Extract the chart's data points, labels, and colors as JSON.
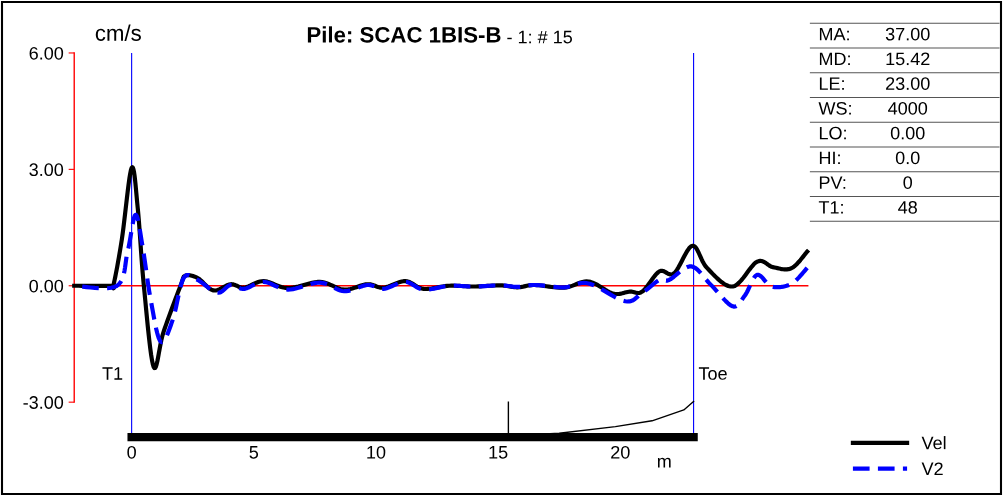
{
  "chart_data": {
    "type": "line",
    "title": "Pile: SCAC 1BIS-B",
    "subtitle": "- 1: # 15",
    "ylabel": "cm/s",
    "xlabel": "m",
    "xlim": [
      -2.35,
      27.7
    ],
    "ylim": [
      -3.9,
      6.0
    ],
    "xticks": [
      0,
      5,
      10,
      15,
      20
    ],
    "yticks": [
      {
        "value": 6,
        "label": "6.00"
      },
      {
        "value": 3,
        "label": "3.00"
      },
      {
        "value": 0,
        "label": "0.00"
      },
      {
        "value": -3,
        "label": "-3.00"
      }
    ],
    "series": [
      {
        "name": "Vel",
        "color": "#000000",
        "line_style": "solid",
        "x": [
          -2.35,
          -0.86,
          -0.74,
          -0.4,
          0,
          0.25,
          0.5,
          0.9,
          1.3,
          2.0,
          2.2,
          2.7,
          3.35,
          4.05,
          4.6,
          5.4,
          6.4,
          7.7,
          8.7,
          9.65,
          10.3,
          11.2,
          11.95,
          13.0,
          14.0,
          15.1,
          15.8,
          16.5,
          17.7,
          18.7,
          19.7,
          20.4,
          20.9,
          21.6,
          22.2,
          22.95,
          23.55,
          24.6,
          25.6,
          26.25,
          27.0,
          27.65
        ],
        "values": [
          0,
          0,
          0.03,
          1.2,
          3.04,
          2.0,
          0,
          -2.09,
          -1.2,
          0,
          0.26,
          0.2,
          -0.12,
          0.04,
          -0.05,
          0.12,
          -0.06,
          0.1,
          -0.1,
          0.04,
          -0.05,
          0.12,
          -0.08,
          0,
          -0.02,
          0.01,
          -0.04,
          0.02,
          -0.05,
          0.11,
          -0.2,
          -0.15,
          -0.15,
          0.37,
          0.32,
          1.03,
          0.46,
          -0.02,
          0.62,
          0.48,
          0.45,
          0.88
        ]
      },
      {
        "name": "V2",
        "color": "#0000ff",
        "line_style": "dashed",
        "x": [
          -2.35,
          -0.6,
          -0.16,
          0.16,
          0.45,
          0.78,
          1.19,
          1.68,
          2.13,
          2.7,
          3.5,
          4.05,
          4.6,
          5.4,
          6.4,
          7.7,
          8.7,
          9.65,
          10.3,
          11.2,
          11.95,
          13.0,
          14.0,
          15.1,
          15.8,
          16.5,
          17.7,
          18.7,
          20.2,
          20.9,
          21.6,
          22.0,
          22.9,
          23.7,
          24.6,
          25.1,
          25.6,
          26.2,
          27.0,
          27.65
        ],
        "values": [
          0,
          0,
          0.9,
          1.83,
          1.0,
          -0.36,
          -1.44,
          -0.88,
          0.2,
          0.15,
          -0.18,
          0.02,
          -0.08,
          0.1,
          -0.1,
          0.08,
          -0.14,
          0.02,
          -0.08,
          0.1,
          -0.1,
          0,
          -0.02,
          0.01,
          -0.03,
          0.02,
          -0.04,
          0.06,
          -0.4,
          -0.18,
          0.15,
          0.15,
          0.5,
          0.03,
          -0.53,
          -0.25,
          0.28,
          -0.02,
          0.05,
          0.46
        ]
      },
      {
        "color": "#000000",
        "line_style": "solid",
        "x": [
          15.42,
          15.42,
          15.42,
          17.5,
          19.8,
          21.3,
          22.6,
          23.0
        ],
        "values": [
          -3.0,
          -3.87,
          -3.87,
          -3.8,
          -3.63,
          -3.48,
          -3.2,
          -2.98
        ]
      }
    ],
    "ref_lines": [
      {
        "axis": "x",
        "value": 0,
        "label": "T1",
        "color": "#0000ff"
      },
      {
        "axis": "x",
        "value": 23,
        "label": "Toe",
        "color": "#0000ff"
      },
      {
        "axis": "y",
        "value": 0,
        "color": "#ff0000"
      }
    ],
    "legend": "bottom right",
    "grid": false,
    "annotations": [
      "MA:",
      "37.00",
      "MD:",
      "15.42",
      "LE:",
      "23.00",
      "WS:",
      "4000",
      "LO:",
      "0.00",
      "HI:",
      "0.0",
      "PV:",
      "0",
      "T1:",
      "48"
    ]
  }
}
